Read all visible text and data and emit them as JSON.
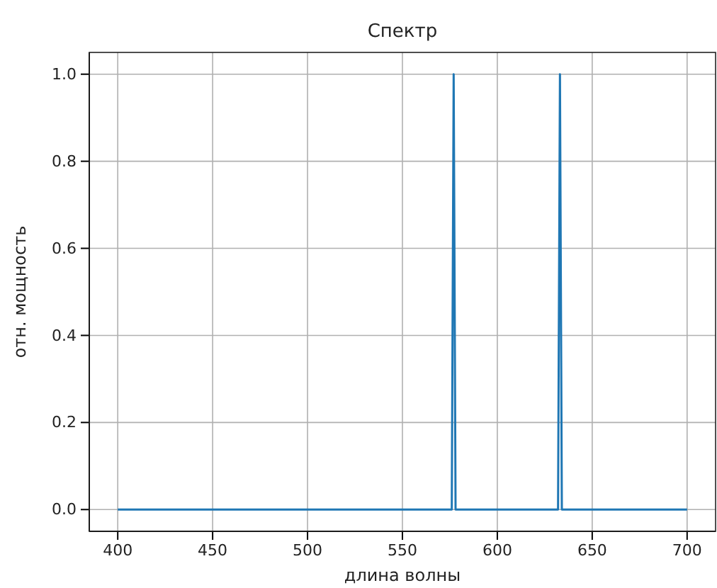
{
  "chart_data": {
    "type": "line",
    "title": "Спектр",
    "xlabel": "длина волны",
    "ylabel": "отн. мощность",
    "x": [
      400,
      576,
      577,
      578,
      632,
      633,
      634,
      700
    ],
    "series": [
      {
        "color": "#1f77b4",
        "values": [
          0,
          0,
          1,
          0,
          0,
          1,
          0,
          0
        ]
      }
    ],
    "xlim": [
      385,
      715
    ],
    "ylim": [
      -0.05,
      1.05
    ],
    "xticks": [
      400,
      450,
      500,
      550,
      600,
      650,
      700
    ],
    "yticks": [
      {
        "value": 0,
        "label": "0.0"
      },
      {
        "value": 0.2,
        "label": "0.2"
      },
      {
        "value": 0.4,
        "label": "0.4"
      },
      {
        "value": 0.6,
        "label": "0.6"
      },
      {
        "value": 0.8,
        "label": "0.8"
      },
      {
        "value": 1,
        "label": "1.0"
      }
    ],
    "grid": true,
    "line_style": "solid"
  }
}
